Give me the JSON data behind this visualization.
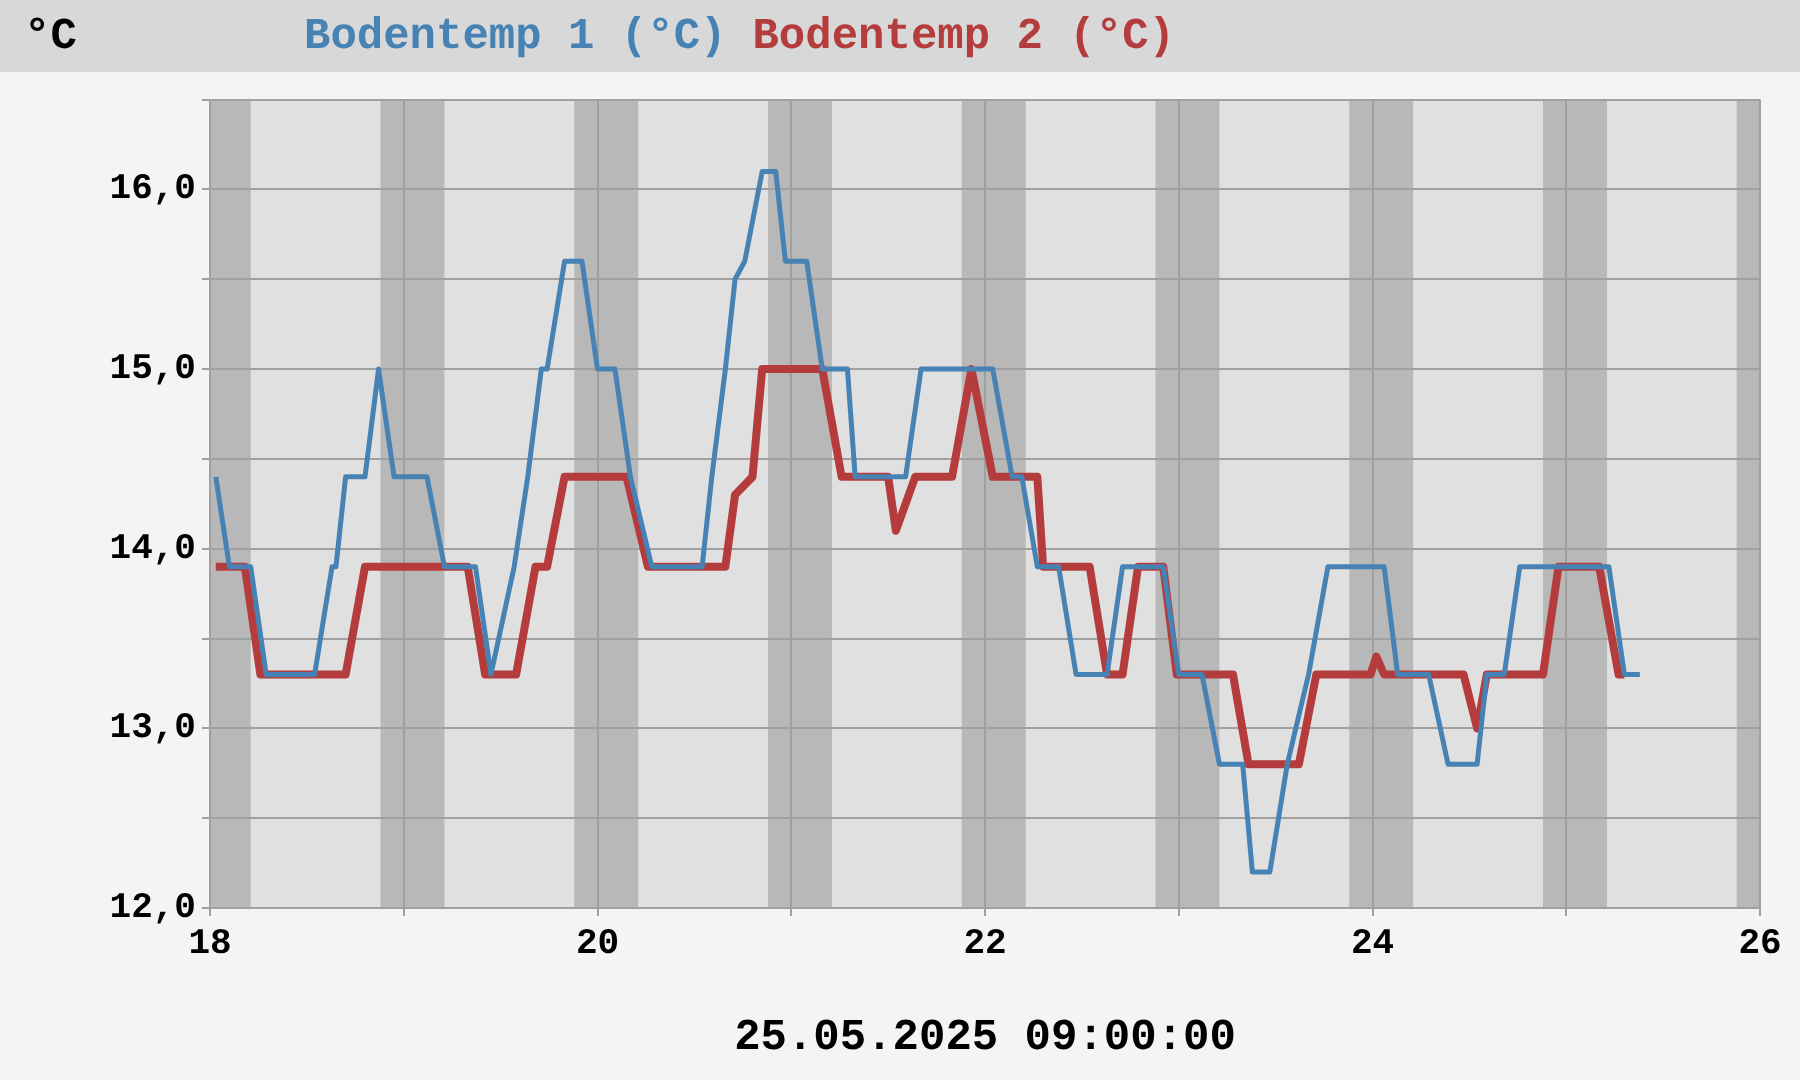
{
  "chart_data": {
    "type": "line",
    "xlabel": "25.05.2025 09:00:00",
    "ylabel": "°C",
    "xlim": [
      18,
      26
    ],
    "xticks": [
      18,
      {
        "value": 19,
        "label": null
      },
      20,
      {
        "value": 21,
        "label": null
      },
      22,
      {
        "value": 23,
        "label": null
      },
      24,
      {
        "value": 25,
        "label": null
      },
      26
    ],
    "ylim": [
      12,
      16.5
    ],
    "yticks": [
      {
        "value": 12,
        "label": "12,0"
      },
      {
        "value": 12.5,
        "label": null
      },
      {
        "value": 13,
        "label": "13,0"
      },
      {
        "value": 13.5,
        "label": null
      },
      {
        "value": 14,
        "label": "14,0"
      },
      {
        "value": 14.5,
        "label": null
      },
      {
        "value": 15,
        "label": "15,0"
      },
      {
        "value": 15.5,
        "label": null
      },
      {
        "value": 16,
        "label": "16,0"
      },
      {
        "value": 16.5,
        "label": null
      }
    ],
    "grid": true,
    "legend": "top",
    "bands": [
      {
        "axis": "x",
        "from": 18,
        "to": 18.21,
        "color": "#b8b8b8"
      },
      {
        "axis": "x",
        "from": 18.88,
        "to": 19.21,
        "color": "#b8b8b8"
      },
      {
        "axis": "x",
        "from": 19.88,
        "to": 20.21,
        "color": "#b8b8b8"
      },
      {
        "axis": "x",
        "from": 20.88,
        "to": 21.21,
        "color": "#b8b8b8"
      },
      {
        "axis": "x",
        "from": 21.88,
        "to": 22.21,
        "color": "#b8b8b8"
      },
      {
        "axis": "x",
        "from": 22.88,
        "to": 23.21,
        "color": "#b8b8b8"
      },
      {
        "axis": "x",
        "from": 23.88,
        "to": 24.21,
        "color": "#b8b8b8"
      },
      {
        "axis": "x",
        "from": 24.88,
        "to": 25.21,
        "color": "#b8b8b8"
      },
      {
        "axis": "x",
        "from": 25.88,
        "to": 26,
        "color": "#b8b8b8"
      }
    ],
    "series": [
      {
        "name": "Bodentemp 1 (°C)",
        "color": "#4682b4",
        "x": [
          18.03,
          18.1,
          18.21,
          18.29,
          18.54,
          18.63,
          18.65,
          18.7,
          18.8,
          18.87,
          18.95,
          19.12,
          19.21,
          19.37,
          19.45,
          19.57,
          19.64,
          19.71,
          19.74,
          19.83,
          19.92,
          20.0,
          20.09,
          20.17,
          20.28,
          20.54,
          20.59,
          20.66,
          20.71,
          20.76,
          20.85,
          20.92,
          20.97,
          21.08,
          21.16,
          21.29,
          21.33,
          21.59,
          21.67,
          22.04,
          22.14,
          22.19,
          22.27,
          22.38,
          22.47,
          22.63,
          22.71,
          22.92,
          23.0,
          23.12,
          23.21,
          23.33,
          23.38,
          23.47,
          23.56,
          23.67,
          23.77,
          24.06,
          24.13,
          24.29,
          24.39,
          24.54,
          24.59,
          24.68,
          24.76,
          25.22,
          25.3,
          25.38
        ],
        "values": [
          14.4,
          13.9,
          13.9,
          13.3,
          13.3,
          13.9,
          13.9,
          14.4,
          14.4,
          15.0,
          14.4,
          14.4,
          13.9,
          13.9,
          13.3,
          13.9,
          14.4,
          15.0,
          15.0,
          15.6,
          15.6,
          15.0,
          15.0,
          14.4,
          13.9,
          13.9,
          14.4,
          15.0,
          15.5,
          15.6,
          16.1,
          16.1,
          15.6,
          15.6,
          15.0,
          15.0,
          14.4,
          14.4,
          15.0,
          15.0,
          14.4,
          14.4,
          13.9,
          13.9,
          13.3,
          13.3,
          13.9,
          13.9,
          13.3,
          13.3,
          12.8,
          12.8,
          12.2,
          12.2,
          12.8,
          13.3,
          13.9,
          13.9,
          13.3,
          13.3,
          12.8,
          12.8,
          13.3,
          13.3,
          13.9,
          13.9,
          13.3,
          13.3
        ]
      },
      {
        "name": "Bodentemp 2 (°C)",
        "color": "#b43c3c",
        "x": [
          18.03,
          18.18,
          18.26,
          18.7,
          18.8,
          19.33,
          19.42,
          19.58,
          19.68,
          19.74,
          19.83,
          20.15,
          20.26,
          20.66,
          20.71,
          20.8,
          20.85,
          21.16,
          21.26,
          21.5,
          21.54,
          21.64,
          21.83,
          21.93,
          22.04,
          22.27,
          22.3,
          22.54,
          22.63,
          22.71,
          22.79,
          22.92,
          22.99,
          23.28,
          23.36,
          23.62,
          23.71,
          23.99,
          24.02,
          24.06,
          24.47,
          24.54,
          24.59,
          24.88,
          24.96,
          25.17,
          25.27,
          25.3
        ],
        "values": [
          13.9,
          13.9,
          13.3,
          13.3,
          13.9,
          13.9,
          13.3,
          13.3,
          13.9,
          13.9,
          14.4,
          14.4,
          13.9,
          13.9,
          14.3,
          14.4,
          15.0,
          15.0,
          14.4,
          14.4,
          14.1,
          14.4,
          14.4,
          15.0,
          14.4,
          14.4,
          13.9,
          13.9,
          13.3,
          13.3,
          13.9,
          13.9,
          13.3,
          13.3,
          12.8,
          12.8,
          13.3,
          13.3,
          13.4,
          13.3,
          13.3,
          13.0,
          13.3,
          13.3,
          13.9,
          13.9,
          13.3,
          13.3
        ]
      }
    ]
  }
}
